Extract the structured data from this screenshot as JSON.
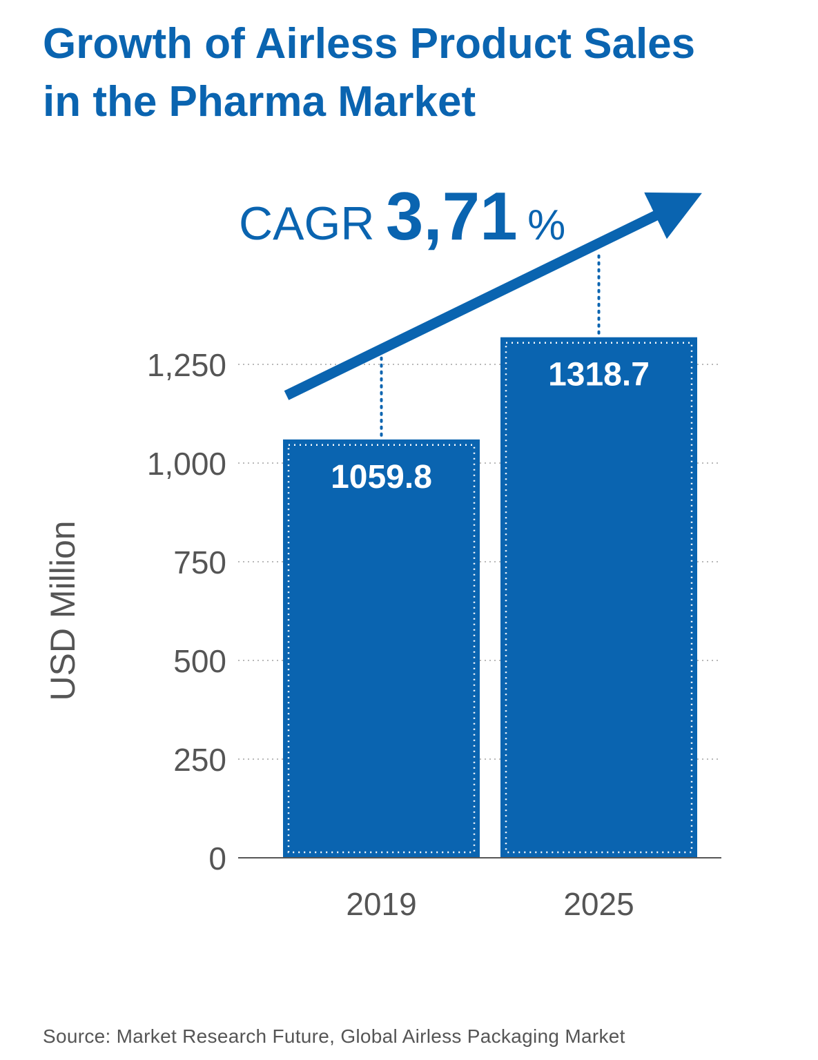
{
  "title_line1": "Growth of Airless Product Sales",
  "title_line2": "in the Pharma Market",
  "cagr": {
    "prefix": "CAGR",
    "value": "3,71",
    "suffix": "%"
  },
  "source": "Source: Market Research Future, Global Airless Packaging Market",
  "colors": {
    "bar": "#0a64b0",
    "text": "#555555",
    "grid": "#b8b8b8"
  },
  "chart_data": {
    "type": "bar",
    "title": "Growth of Airless Product Sales in the Pharma Market",
    "categories": [
      "2019",
      "2025"
    ],
    "values": [
      1059.8,
      1318.7
    ],
    "value_labels": [
      "1059.8",
      "1318.7"
    ],
    "xlabel": "",
    "ylabel": "USD Million",
    "ylim": [
      0,
      1250
    ],
    "yticks": [
      0,
      250,
      500,
      750,
      1000,
      1250
    ],
    "ytick_labels": [
      "0",
      "250",
      "500",
      "750",
      "1,000",
      "1,250"
    ],
    "grid": true,
    "annotation": "CAGR 3,71%"
  }
}
